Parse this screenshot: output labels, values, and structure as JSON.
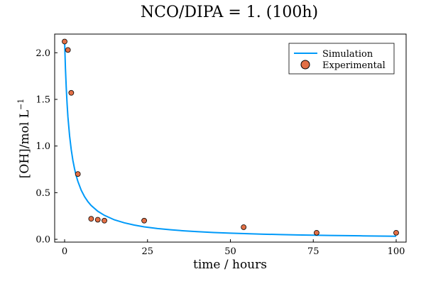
{
  "chart_data": {
    "type": "scatter",
    "title": "NCO/DIPA = 1. (100h)",
    "xlabel": "time / hours",
    "ylabel_main": "[OH]/mol L",
    "ylabel_sup": "−1",
    "xlim": [
      -3,
      103
    ],
    "ylim": [
      -0.03,
      2.2
    ],
    "xticks": [
      0,
      25,
      50,
      75,
      100
    ],
    "xtick_labels": [
      "0",
      "25",
      "50",
      "75",
      "100"
    ],
    "yticks": [
      0.0,
      0.5,
      1.0,
      1.5,
      2.0
    ],
    "ytick_labels": [
      "0.0",
      "0.5",
      "1.0",
      "1.5",
      "2.0"
    ],
    "grid": false,
    "legend_position": "top-right",
    "series": [
      {
        "name": "Simulation",
        "kind": "line",
        "color": "#009af9",
        "x": [
          0,
          0.25,
          0.5,
          0.75,
          1,
          1.5,
          2,
          2.5,
          3,
          3.5,
          4,
          5,
          6,
          7,
          8,
          10,
          12,
          15,
          18,
          21,
          24,
          28,
          32,
          36,
          40,
          45,
          50,
          55,
          60,
          65,
          70,
          75,
          80,
          85,
          90,
          95,
          100
        ],
        "y": [
          2.12,
          1.83,
          1.62,
          1.45,
          1.31,
          1.11,
          0.96,
          0.845,
          0.755,
          0.681,
          0.621,
          0.527,
          0.458,
          0.405,
          0.363,
          0.301,
          0.257,
          0.209,
          0.177,
          0.153,
          0.134,
          0.116,
          0.102,
          0.091,
          0.082,
          0.073,
          0.066,
          0.06,
          0.055,
          0.051,
          0.047,
          0.044,
          0.041,
          0.039,
          0.037,
          0.035,
          0.033
        ]
      },
      {
        "name": "Experimental",
        "kind": "scatter",
        "color": "#e26f46",
        "x": [
          0,
          1,
          2,
          4,
          8,
          10,
          12,
          24,
          54,
          76,
          100
        ],
        "y": [
          2.12,
          2.03,
          1.57,
          0.7,
          0.22,
          0.21,
          0.2,
          0.2,
          0.13,
          0.07,
          0.07
        ]
      }
    ]
  }
}
